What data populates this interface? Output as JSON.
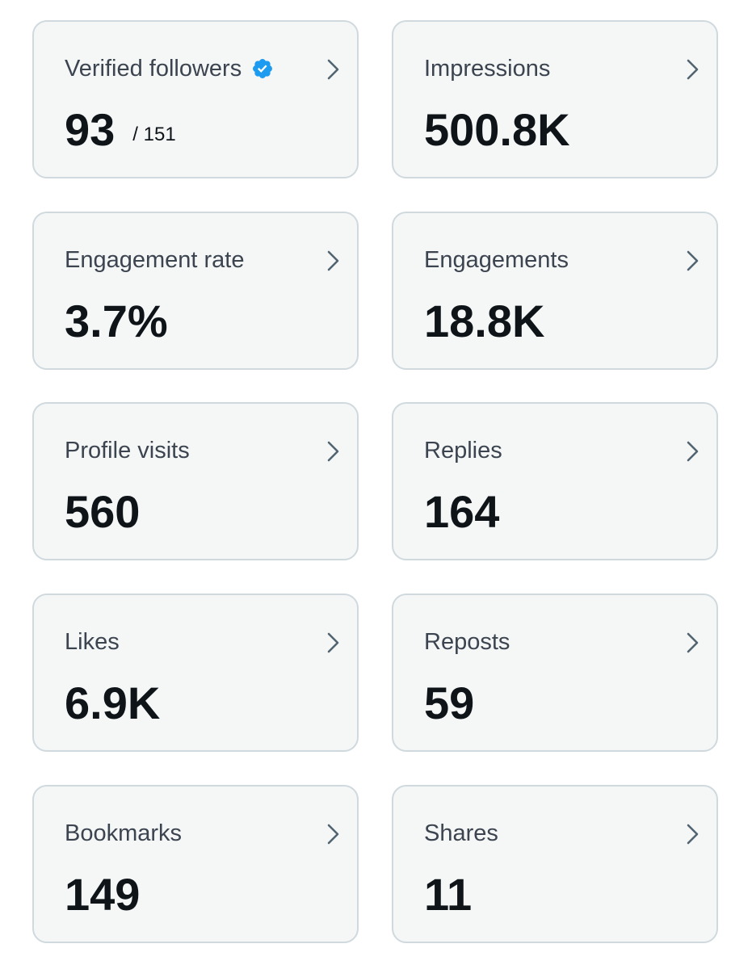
{
  "colors": {
    "card_background": "#f5f7f7",
    "card_border": "#cfd9de",
    "title_text": "#3c4450",
    "value_text": "#0f1419",
    "chevron": "#536471",
    "verified_badge": "#1d9bf0"
  },
  "icons": {
    "verified": "verified-badge-icon",
    "chevron": "chevron-right-icon"
  },
  "metrics": [
    {
      "label": "Verified followers",
      "value": "93",
      "suffix": "/ 151",
      "verified": true
    },
    {
      "label": "Impressions",
      "value": "500.8K"
    },
    {
      "label": "Engagement rate",
      "value": "3.7%"
    },
    {
      "label": "Engagements",
      "value": "18.8K"
    },
    {
      "label": "Profile visits",
      "value": "560"
    },
    {
      "label": "Replies",
      "value": "164"
    },
    {
      "label": "Likes",
      "value": "6.9K"
    },
    {
      "label": "Reposts",
      "value": "59"
    },
    {
      "label": "Bookmarks",
      "value": "149"
    },
    {
      "label": "Shares",
      "value": "11"
    }
  ]
}
